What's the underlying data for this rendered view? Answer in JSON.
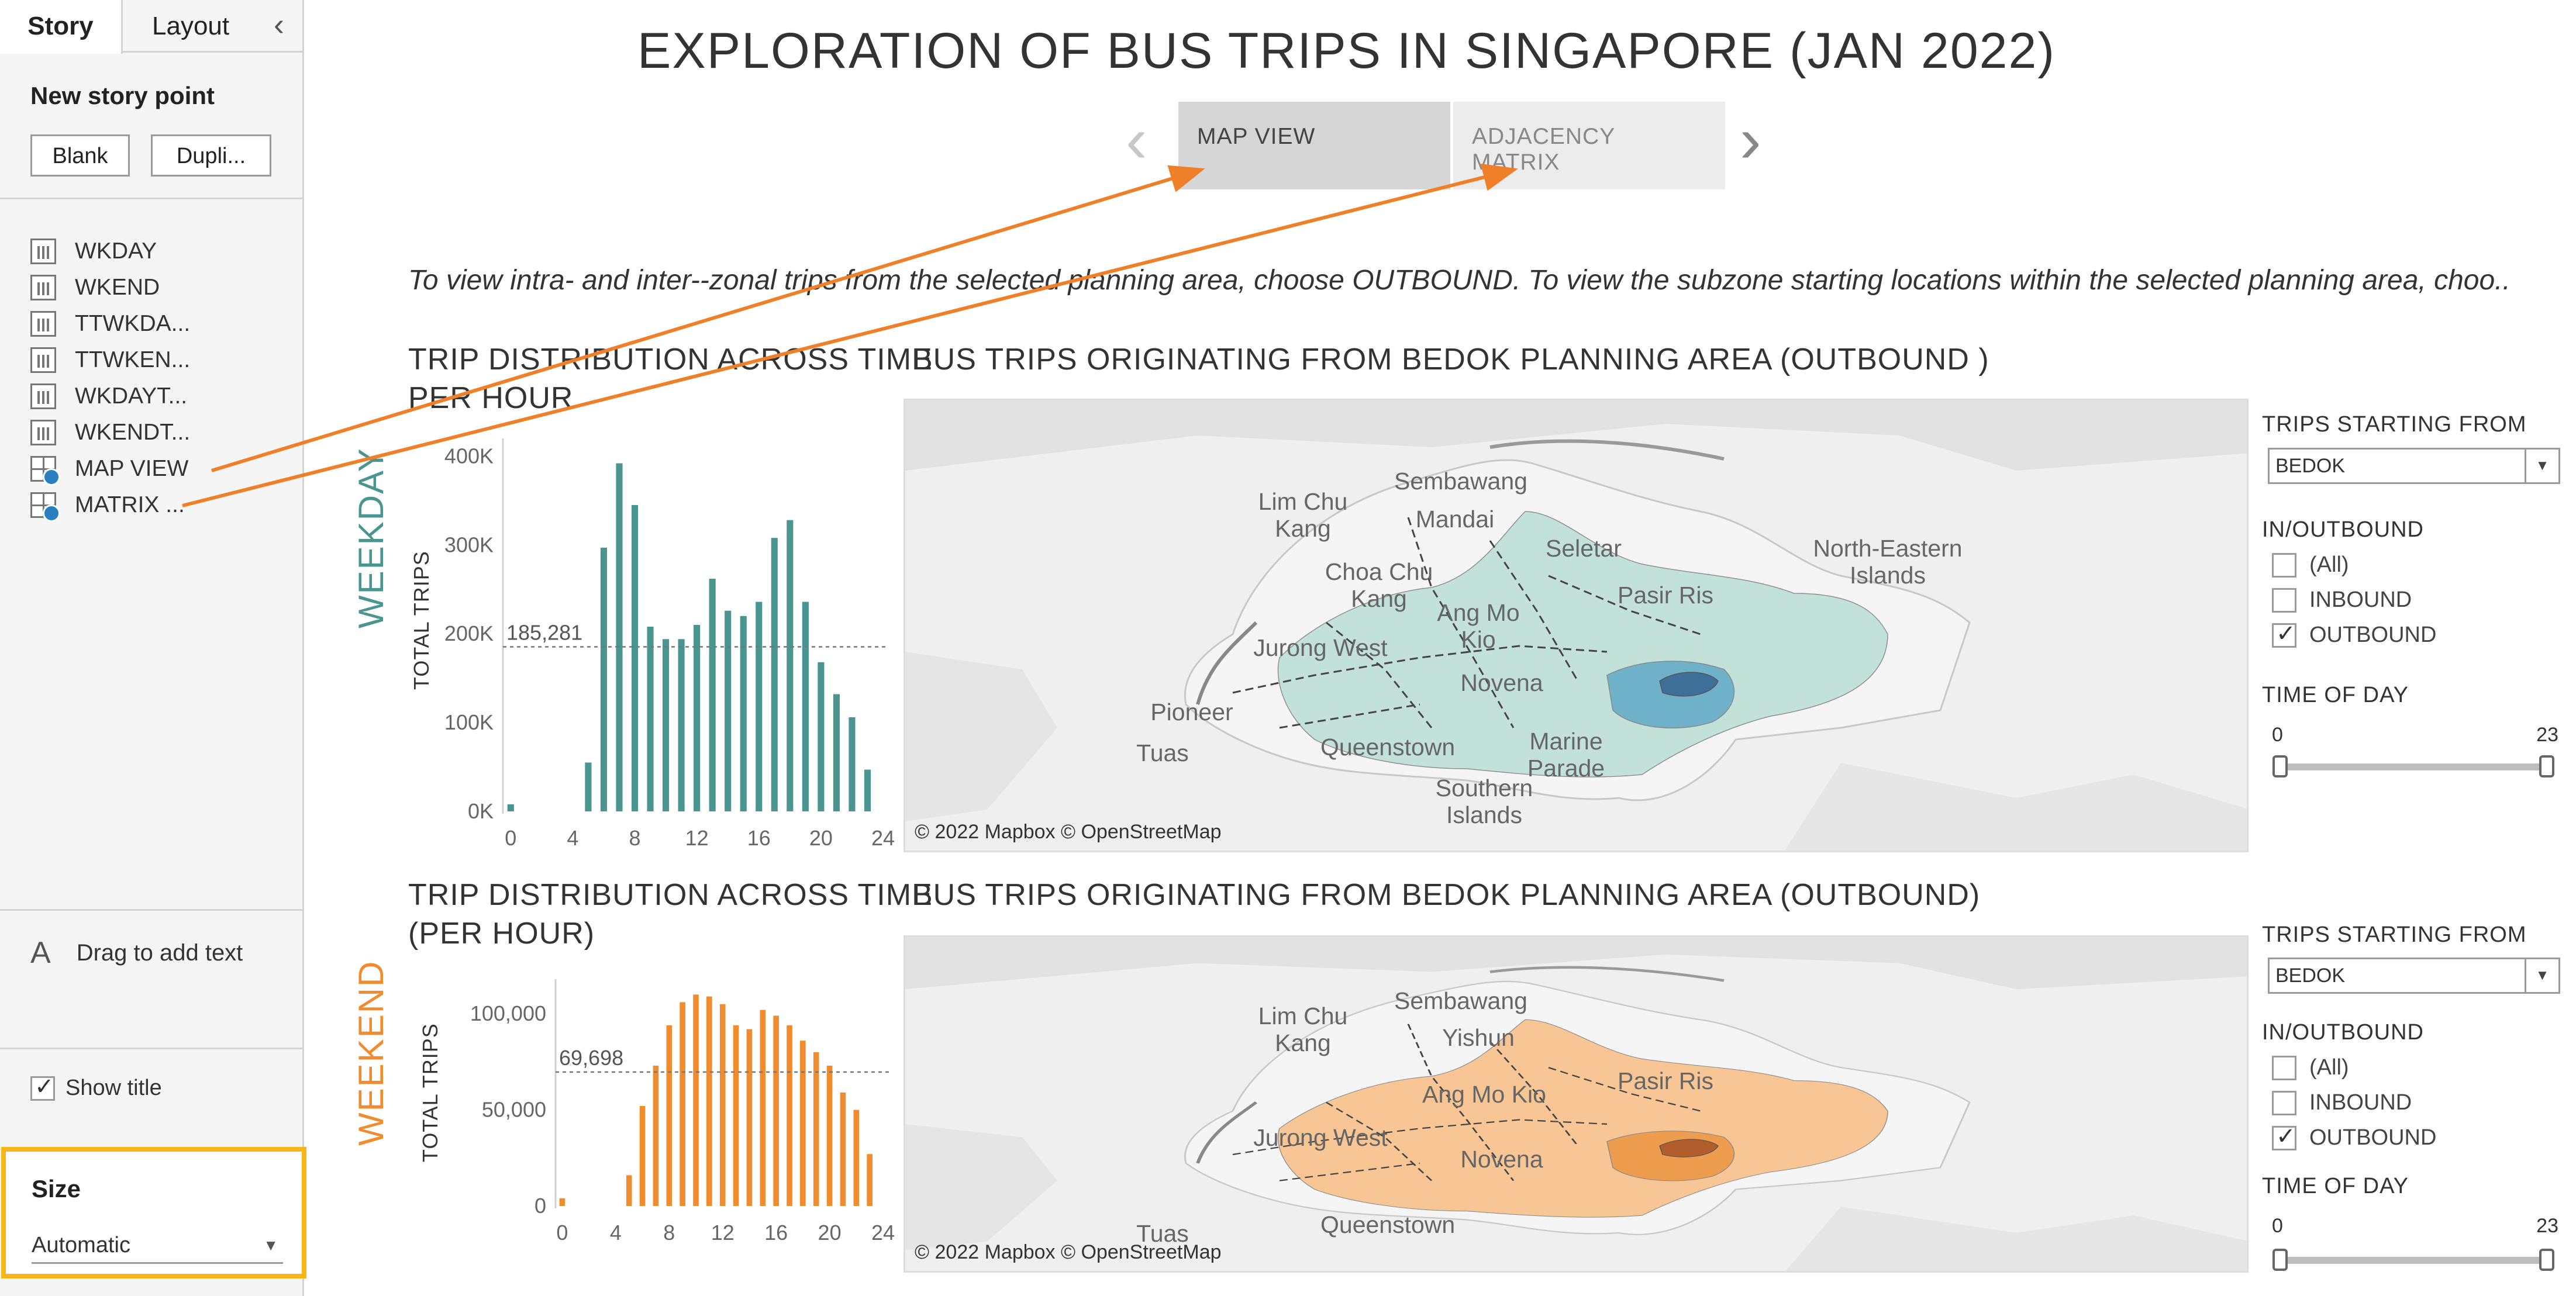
{
  "sidebar": {
    "tab_story": "Story",
    "tab_layout": "Layout",
    "new_story_point": "New story point",
    "btn_blank": "Blank",
    "btn_duplicate": "Dupli...",
    "story_points": [
      {
        "label": "WKDAY",
        "icon": "chart-icon"
      },
      {
        "label": "WKEND",
        "icon": "chart-icon"
      },
      {
        "label": "TTWKDA...",
        "icon": "chart-icon"
      },
      {
        "label": "TTWKEN...",
        "icon": "chart-icon"
      },
      {
        "label": "WKDAYT...",
        "icon": "chart-icon"
      },
      {
        "label": "WKENDT...",
        "icon": "chart-icon"
      },
      {
        "label": "MAP VIEW",
        "icon": "dashboard-icon"
      },
      {
        "label": "MATRIX ...",
        "icon": "dashboard-icon"
      }
    ],
    "drag_text": "Drag to add text",
    "show_title": "Show title",
    "size_label": "Size",
    "size_value": "Automatic"
  },
  "story": {
    "title": "EXPLORATION OF BUS TRIPS IN SINGAPORE (JAN 2022)",
    "tabs": [
      "MAP VIEW",
      "ADJACENCY MATRIX"
    ],
    "instructions": "To view intra- and inter--zonal trips from the selected planning area, choose OUTBOUND. To view the subzone starting locations within the selected planning area, choo.."
  },
  "weekday": {
    "side_label": "WEEKDAY",
    "chart_title_1": "TRIP DISTRIBUTION ACROSS TIME",
    "chart_title_2": "PER HOUR",
    "map_title": "BUS TRIPS ORIGINATING FROM BEDOK PLANNING AREA (OUTBOUND )",
    "ylabel": "TOTAL TRIPS",
    "ref_label": "185,281",
    "filters": {
      "trips_from_label": "TRIPS STARTING FROM",
      "trips_from_value": "BEDOK",
      "inout_label": "IN/OUTBOUND",
      "options": [
        "(All)",
        "INBOUND",
        "OUTBOUND"
      ],
      "checked": [
        false,
        false,
        true
      ],
      "time_label": "TIME OF DAY",
      "time_min": "0",
      "time_max": "23"
    }
  },
  "weekend": {
    "side_label": "WEEKEND",
    "chart_title_1": "TRIP DISTRIBUTION ACROSS TIME",
    "chart_title_2": "(PER HOUR)",
    "map_title": "BUS TRIPS ORIGINATING FROM BEDOK PLANNING AREA (OUTBOUND)",
    "ylabel": "TOTAL TRIPS",
    "ref_label": "69,698",
    "filters": {
      "trips_from_label": "TRIPS STARTING FROM",
      "trips_from_value": "BEDOK",
      "inout_label": "IN/OUTBOUND",
      "options": [
        "(All)",
        "INBOUND",
        "OUTBOUND"
      ],
      "checked": [
        false,
        false,
        true
      ],
      "time_label": "TIME OF DAY",
      "time_min": "0",
      "time_max": "23"
    }
  },
  "maps": {
    "copyright": "© 2022 Mapbox © OpenStreetMap",
    "weekday_labels": [
      "Lim Chu Kang",
      "Sembawang",
      "Mandai",
      "Seletar",
      "North-Eastern Islands",
      "Choa Chu Kang",
      "Ang Mo Kio",
      "Pasir Ris",
      "Jurong West",
      "Novena",
      "Pioneer",
      "Queenstown",
      "Marine Parade",
      "Tuas",
      "Southern Islands"
    ],
    "weekend_labels": [
      "Lim Chu Kang",
      "Sembawang",
      "Yishun",
      "Ang Mo Kio",
      "Pasir Ris",
      "Jurong West",
      "Novena",
      "Tuas",
      "Queenstown"
    ]
  },
  "chart_data": [
    {
      "type": "bar",
      "title": "TRIP DISTRIBUTION ACROSS TIME PER HOUR",
      "ylabel": "TOTAL TRIPS",
      "x": [
        0,
        1,
        2,
        3,
        4,
        5,
        6,
        7,
        8,
        9,
        10,
        11,
        12,
        13,
        14,
        15,
        16,
        17,
        18,
        19,
        20,
        21,
        22,
        23
      ],
      "values": [
        8000,
        0,
        0,
        0,
        0,
        55000,
        297000,
        392000,
        345000,
        208000,
        194000,
        194000,
        210000,
        262000,
        226000,
        220000,
        236000,
        308000,
        328000,
        236000,
        168000,
        132000,
        106000,
        47000
      ],
      "x_ticks": [
        0,
        4,
        8,
        12,
        16,
        20,
        24
      ],
      "y_ticks": [
        "0K",
        "100K",
        "200K",
        "300K",
        "400K"
      ],
      "y_tick_values": [
        0,
        100000,
        200000,
        300000,
        400000
      ],
      "ylim": [
        0,
        420000
      ],
      "xlim": [
        -0.5,
        24
      ],
      "reference_line": 185281,
      "color": "#4a958f"
    },
    {
      "type": "bar",
      "title": "TRIP DISTRIBUTION ACROSS TIME (PER HOUR)",
      "ylabel": "TOTAL TRIPS",
      "x": [
        0,
        1,
        2,
        3,
        4,
        5,
        6,
        7,
        8,
        9,
        10,
        11,
        12,
        13,
        14,
        15,
        16,
        17,
        18,
        19,
        20,
        21,
        22,
        23
      ],
      "values": [
        4000,
        0,
        0,
        0,
        0,
        16000,
        52000,
        73000,
        94000,
        106000,
        110000,
        109000,
        105000,
        94000,
        92000,
        102000,
        99000,
        94000,
        86000,
        80000,
        73000,
        59000,
        50000,
        27000
      ],
      "x_ticks": [
        0,
        4,
        8,
        12,
        16,
        20,
        24
      ],
      "y_ticks": [
        "0",
        "50,000",
        "100,000"
      ],
      "y_tick_values": [
        0,
        50000,
        100000
      ],
      "ylim": [
        0,
        118000
      ],
      "xlim": [
        -0.5,
        24
      ],
      "reference_line": 69698,
      "color": "#f08c2e"
    }
  ],
  "colors": {
    "weekday_accent": "#4a958f",
    "weekend_accent": "#f08c2e",
    "annotation_arrow": "#f07f2a",
    "highlight_box": "#f7b617"
  }
}
